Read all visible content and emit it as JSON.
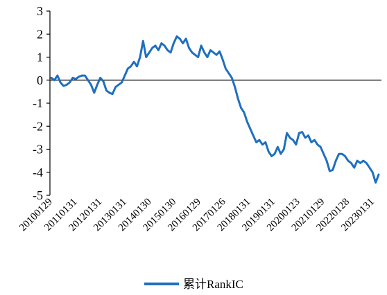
{
  "chart_data": {
    "type": "line",
    "ylim": [
      -5,
      3
    ],
    "yticks": [
      "3",
      "2",
      "1",
      "0",
      "-1",
      "-2",
      "-3",
      "-4",
      "-5"
    ],
    "xticks": [
      "20100129",
      "20110131",
      "20120131",
      "20130131",
      "20140130",
      "20150130",
      "20160129",
      "20170126",
      "20180131",
      "20190131",
      "20200123",
      "20210129",
      "20220128",
      "20230131"
    ],
    "legend_position": "bottom",
    "colors": {
      "line": "#1f6fbf",
      "axis": "#000000"
    },
    "series": [
      {
        "name": "累计RankIC",
        "values": [
          0.1,
          0.0,
          0.2,
          -0.1,
          -0.25,
          -0.2,
          -0.1,
          0.1,
          0.05,
          0.15,
          0.2,
          0.2,
          0.0,
          -0.2,
          -0.55,
          -0.2,
          0.1,
          -0.05,
          -0.45,
          -0.55,
          -0.6,
          -0.3,
          -0.2,
          -0.1,
          0.2,
          0.5,
          0.6,
          0.8,
          0.6,
          1.0,
          1.7,
          1.0,
          1.2,
          1.4,
          1.5,
          1.3,
          1.6,
          1.5,
          1.3,
          1.2,
          1.6,
          1.9,
          1.8,
          1.6,
          1.8,
          1.4,
          1.2,
          1.1,
          1.0,
          1.5,
          1.2,
          1.0,
          1.3,
          1.2,
          1.1,
          1.25,
          0.9,
          0.5,
          0.3,
          0.1,
          -0.3,
          -0.8,
          -1.2,
          -1.4,
          -1.8,
          -2.1,
          -2.4,
          -2.7,
          -2.6,
          -2.8,
          -2.7,
          -3.1,
          -3.3,
          -3.2,
          -2.9,
          -3.2,
          -3.0,
          -2.3,
          -2.5,
          -2.6,
          -2.8,
          -2.3,
          -2.25,
          -2.5,
          -2.4,
          -2.7,
          -2.6,
          -2.8,
          -2.9,
          -3.2,
          -3.5,
          -3.95,
          -3.9,
          -3.5,
          -3.2,
          -3.2,
          -3.3,
          -3.5,
          -3.6,
          -3.8,
          -3.5,
          -3.6,
          -3.5,
          -3.6,
          -3.8,
          -4.0,
          -4.45,
          -4.1
        ]
      }
    ]
  }
}
